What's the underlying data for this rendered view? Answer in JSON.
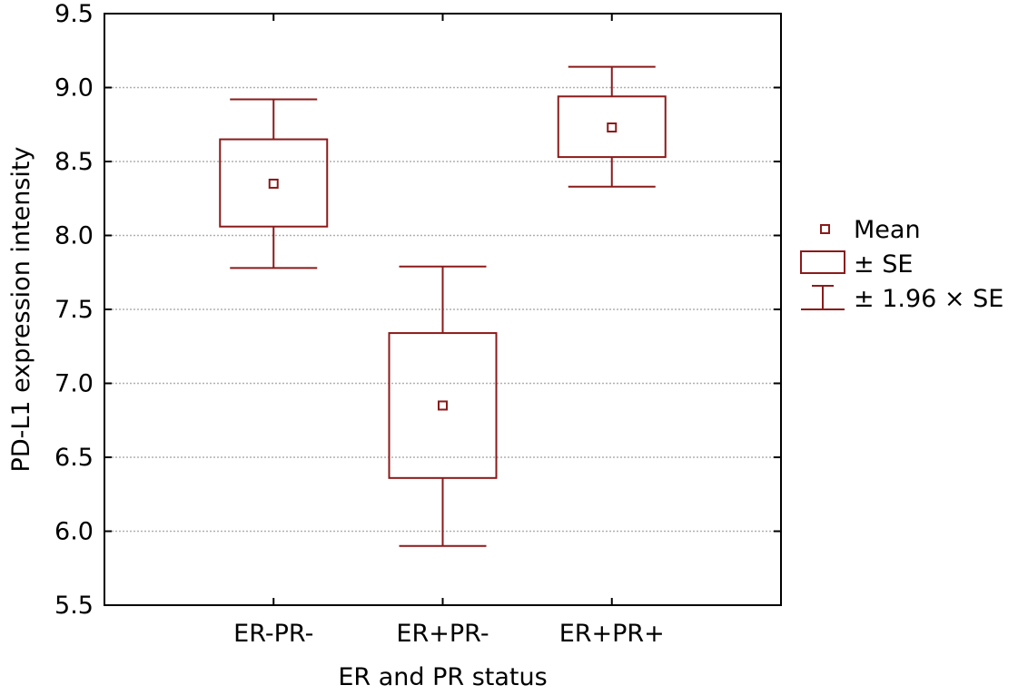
{
  "chart_data": {
    "type": "box",
    "title": "",
    "xlabel": "ER and PR status",
    "ylabel": "PD-L1 expression intensity",
    "ylim": [
      5.5,
      9.5
    ],
    "yticks": [
      "5.5",
      "6.0",
      "6.5",
      "7.0",
      "7.5",
      "8.0",
      "8.5",
      "9.0",
      "9.5"
    ],
    "grid": "horizontal dotted",
    "legend_position": "right",
    "categories": [
      "ER-PR-",
      "ER+PR-",
      "ER+PR+"
    ],
    "groups": [
      {
        "category": "ER-PR-",
        "mean": 8.35,
        "se_low": 8.06,
        "se_high": 8.65,
        "ci_low": 7.78,
        "ci_high": 8.92
      },
      {
        "category": "ER+PR-",
        "mean": 6.85,
        "se_low": 6.36,
        "se_high": 7.34,
        "ci_low": 5.9,
        "ci_high": 7.79
      },
      {
        "category": "ER+PR+",
        "mean": 8.73,
        "se_low": 8.53,
        "se_high": 8.94,
        "ci_low": 8.33,
        "ci_high": 9.14
      }
    ],
    "legend": [
      {
        "key": "mean",
        "label": "Mean"
      },
      {
        "key": "se",
        "label": "± SE"
      },
      {
        "key": "ci",
        "label": "± 1.96 × SE"
      }
    ],
    "colors": {
      "marks": "#8b1a1a",
      "axis": "#000000",
      "grid": "#b0b0b0"
    }
  }
}
